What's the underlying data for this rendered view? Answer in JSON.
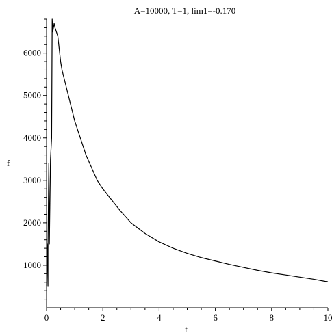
{
  "chart_data": {
    "type": "line",
    "title": "A=10000, T=1, lim1=-0.170",
    "xlabel": "t",
    "ylabel": "f",
    "xlim": [
      0,
      10
    ],
    "ylim": [
      0,
      6800
    ],
    "x_ticks": [
      "0",
      "2",
      "4",
      "6",
      "8",
      "10"
    ],
    "y_ticks": [
      "1000",
      "2000",
      "3000",
      "4000",
      "5000",
      "6000"
    ],
    "grid": false,
    "line_color": "#000000",
    "series": [
      {
        "x": [
          0.0,
          0.02,
          0.05,
          0.05,
          0.08,
          0.1,
          0.14,
          0.18,
          0.2,
          0.22,
          0.27,
          0.3,
          0.35,
          0.4,
          0.5,
          0.55,
          0.7,
          0.85,
          1.0,
          1.2,
          1.4,
          1.6,
          1.8,
          2.0,
          2.3,
          2.6,
          3.0,
          3.5,
          4.0,
          4.5,
          5.0,
          5.5,
          6.0,
          6.5,
          7.0,
          7.5,
          8.0,
          8.5,
          9.0,
          9.5,
          9.9,
          10.0
        ],
        "y": [
          500,
          1500,
          500,
          1400,
          3400,
          1500,
          3500,
          4000,
          6800,
          6500,
          6700,
          6600,
          6500,
          6400,
          5800,
          5600,
          5200,
          4800,
          4400,
          4000,
          3600,
          3300,
          3000,
          2800,
          2550,
          2300,
          2000,
          1750,
          1550,
          1400,
          1280,
          1180,
          1100,
          1020,
          950,
          880,
          820,
          770,
          720,
          670,
          620,
          610
        ]
      }
    ]
  }
}
